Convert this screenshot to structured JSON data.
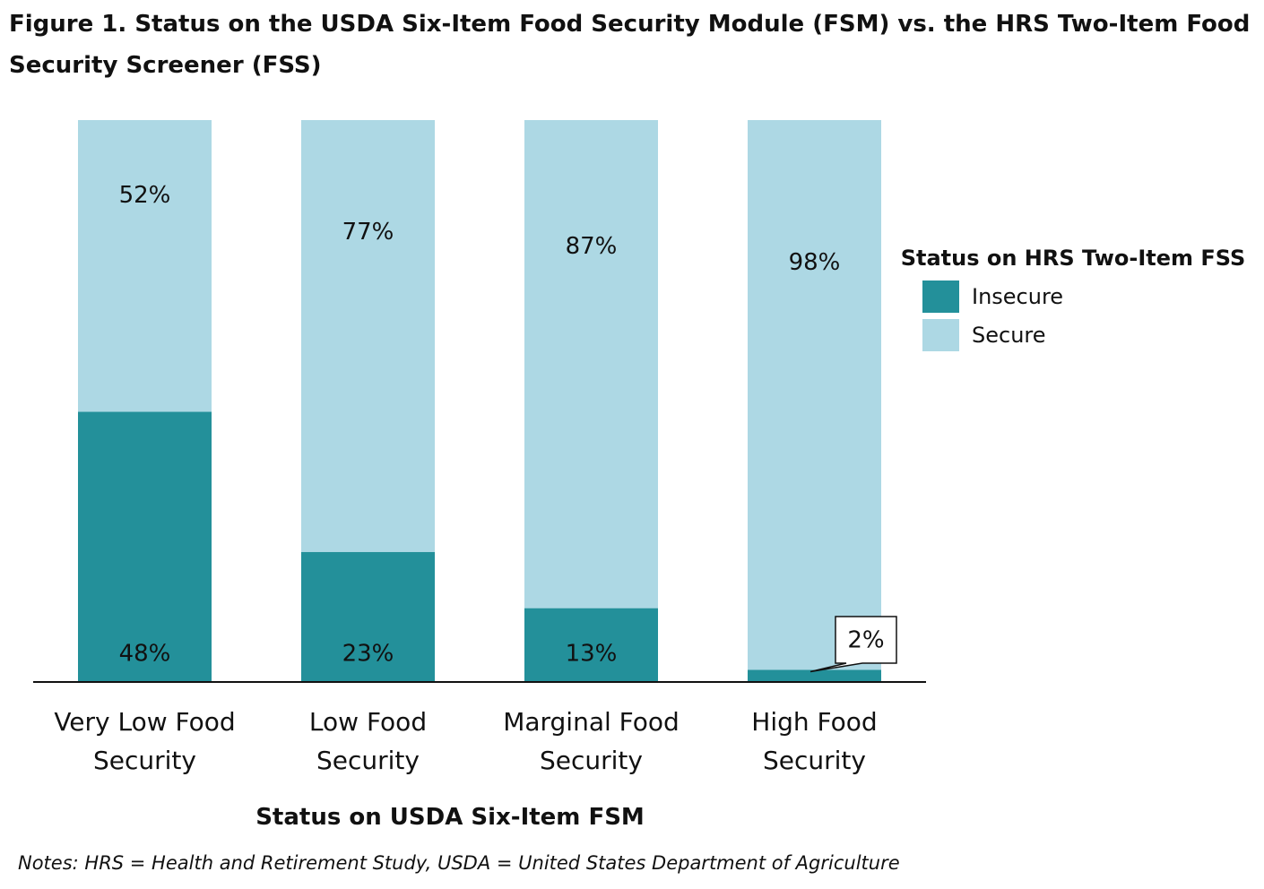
{
  "figure": {
    "title": "Figure 1. Status on the USDA Six-Item Food Security Module (FSM) vs. the HRS Two-Item Food Security Screener (FSS)",
    "notes": "Notes: HRS = Health and Retirement Study, USDA = United States Department of Agriculture"
  },
  "colors": {
    "insecure": "#23909A",
    "secure": "#ADD8E4",
    "text": "#111111",
    "axis": "#111111"
  },
  "chart_data": {
    "type": "bar",
    "stacked": true,
    "percent": true,
    "categories": [
      "Very Low Food Security",
      "Low Food Security",
      "Marginal Food Security",
      "High Food Security"
    ],
    "category_lines": [
      [
        "Very Low Food",
        "Security"
      ],
      [
        "Low Food",
        "Security"
      ],
      [
        "Marginal Food",
        "Security"
      ],
      [
        "High Food",
        "Security"
      ]
    ],
    "series": [
      {
        "name": "Insecure",
        "values": [
          48,
          23,
          13,
          2
        ],
        "labels": [
          "48%",
          "23%",
          "13%",
          "2%"
        ]
      },
      {
        "name": "Secure",
        "values": [
          52,
          77,
          87,
          98
        ],
        "labels": [
          "52%",
          "77%",
          "87%",
          "98%"
        ]
      }
    ],
    "title": "Figure 1. Status on the USDA Six-Item Food Security Module (FSM) vs. the HRS Two-Item Food Security Screener (FSS)",
    "xlabel": "Status on USDA Six-Item FSM",
    "ylabel": "",
    "ylim": [
      0,
      100
    ],
    "legend": {
      "title": "Status on HRS Two-Item FSS",
      "position": "right",
      "items": [
        "Insecure",
        "Secure"
      ]
    },
    "grid": false,
    "callout": {
      "category_index": 3,
      "series_index": 0,
      "text": "2%"
    }
  }
}
